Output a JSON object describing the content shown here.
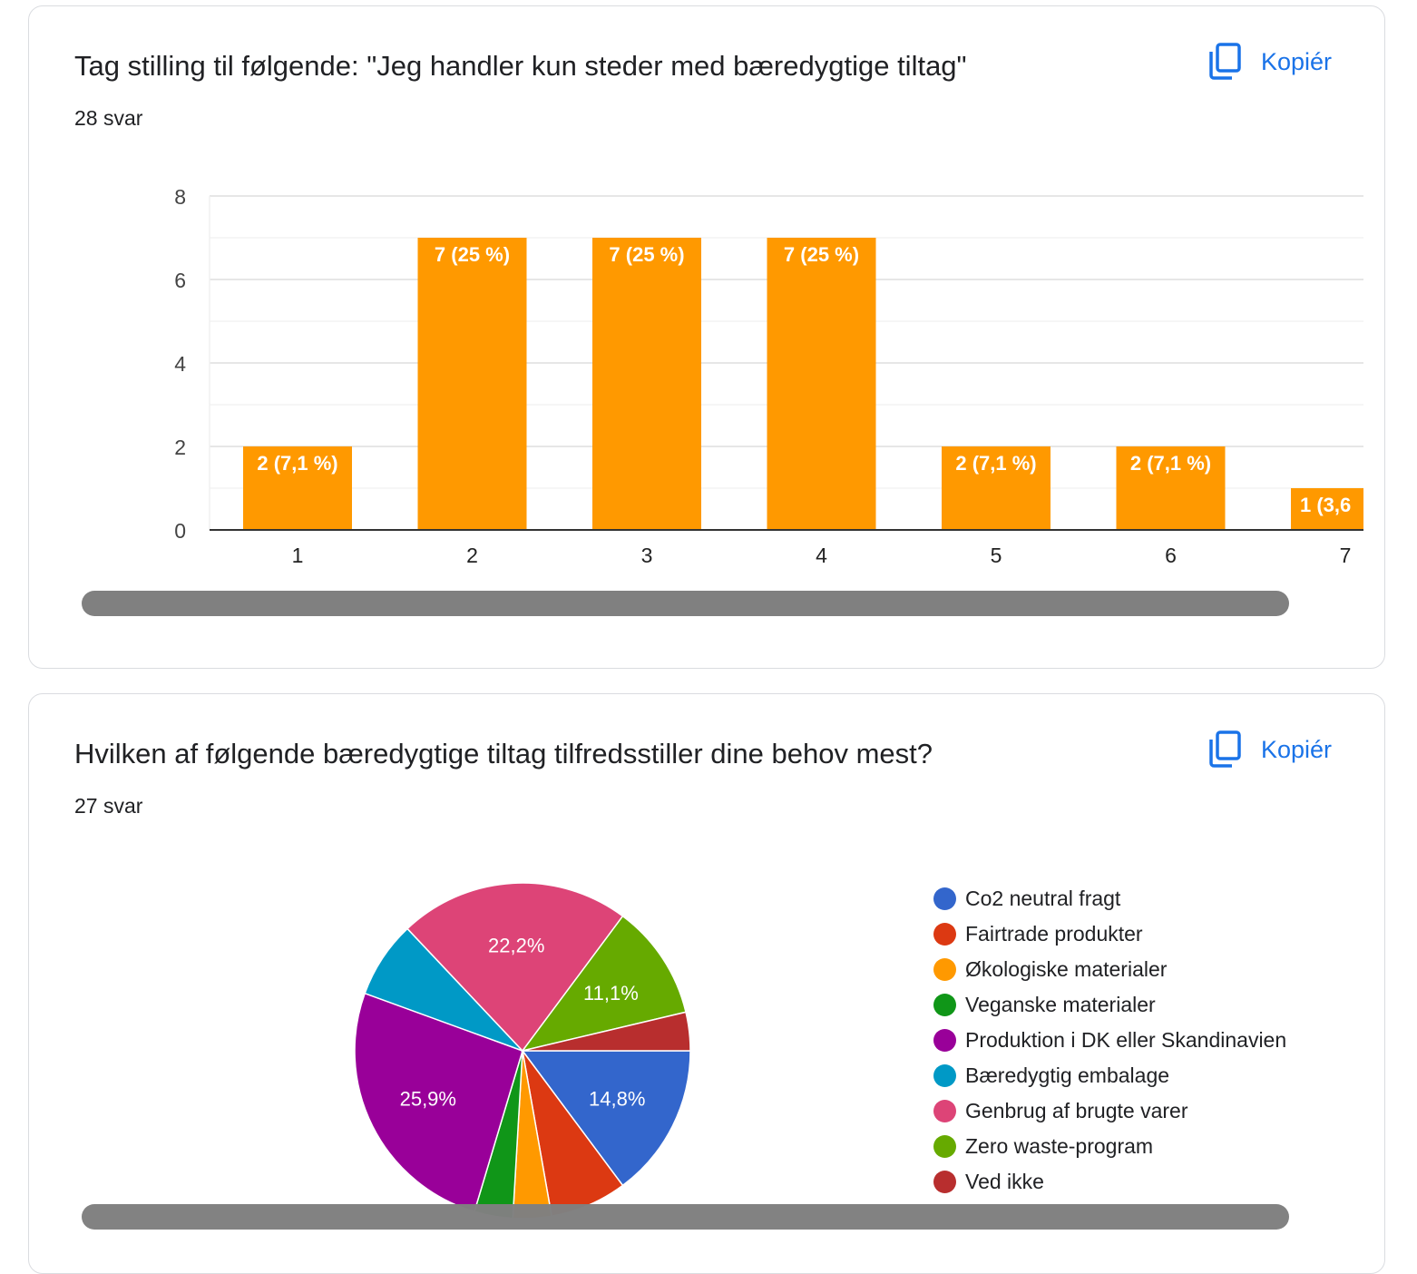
{
  "cards": [
    {
      "title": "Tag stilling til følgende: \"Jeg handler kun steder med bæredygtige tiltag\"",
      "count_label": "28 svar",
      "copy_label": "Kopiér"
    },
    {
      "title": "Hvilken af følgende bæredygtige tiltag tilfredsstiller dine behov mest?",
      "count_label": "27 svar",
      "copy_label": "Kopiér"
    }
  ],
  "icons": {
    "copy": "copy-icon"
  },
  "colors": {
    "accent": "#1a73e8",
    "bar": "#ff9900",
    "scrollbar": "#808080"
  },
  "chart_data": [
    {
      "type": "bar",
      "categories": [
        "1",
        "2",
        "3",
        "4",
        "5",
        "6",
        "7"
      ],
      "values": [
        2,
        7,
        7,
        7,
        2,
        2,
        1
      ],
      "data_labels": [
        "2 (7,1 %)",
        "7 (25 %)",
        "7 (25 %)",
        "7 (25 %)",
        "2 (7,1 %)",
        "2 (7,1 %)",
        "1 (3,6"
      ],
      "ylim": [
        0,
        8
      ],
      "yticks": [
        0,
        2,
        4,
        6,
        8
      ],
      "grid": true,
      "color": "#ff9900"
    },
    {
      "type": "pie",
      "labels": [
        "Co2 neutral fragt",
        "Fairtrade produkter",
        "Økologiske materialer",
        "Veganske materialer",
        "Produktion i DK eller Skandinavien",
        "Bæredygtig embalage",
        "Genbrug af brugte varer",
        "Zero waste-program",
        "Ved ikke"
      ],
      "values": [
        4,
        2,
        1,
        1,
        7,
        2,
        6,
        3,
        1
      ],
      "percent_labels": [
        "14,8%",
        "",
        "",
        "",
        "25,9%",
        "",
        "22,2%",
        "11,1%",
        ""
      ],
      "colors": [
        "#3366cc",
        "#dc3912",
        "#ff9900",
        "#109618",
        "#990099",
        "#0099c6",
        "#dd4477",
        "#66aa00",
        "#b82e2e"
      ],
      "legend_position": "right"
    }
  ]
}
